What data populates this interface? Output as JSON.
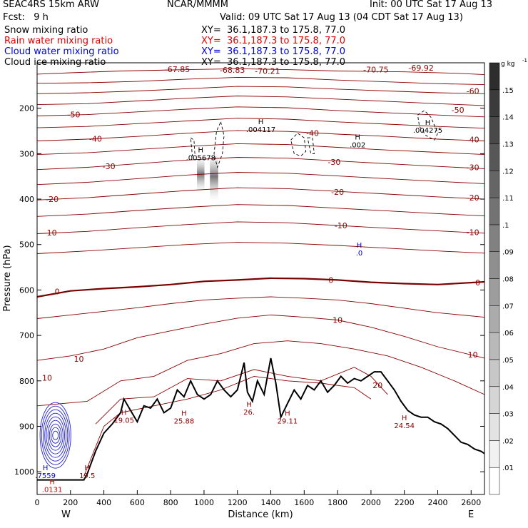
{
  "header": {
    "model": "SEAC4RS 15km ARW",
    "center": "NCAR/MMMM",
    "init": "Init: 00 UTC Sat 17 Aug 13",
    "fcst": "Fcst:   9 h",
    "valid": "Valid: 09 UTC Sat 17 Aug 13 (04 CDT Sat 17 Aug 13)",
    "fields": [
      {
        "name": "Snow mixing ratio",
        "xy": "XY=  36.1,187.3 to 175.8, 77.0",
        "color": "#000000"
      },
      {
        "name": "Rain water mixing ratio",
        "xy": "XY=  36.1,187.3 to 175.8, 77.0",
        "color": "#e00000"
      },
      {
        "name": "Cloud water mixing ratio",
        "xy": "XY=  36.1,187.3 to 175.8, 77.0",
        "color": "#0000e0"
      },
      {
        "name": "Cloud ice mixing ratio",
        "xy": "XY=  36.1,187.3 to 175.8, 77.0",
        "color": "#000000"
      }
    ]
  },
  "chart_data": {
    "type": "cross-section",
    "xlabel": "Distance (km)",
    "ylabel": "Pressure (hPa)",
    "xlim": [
      0,
      2680
    ],
    "ylim": [
      1050,
      100
    ],
    "x_ticks": [
      0,
      200,
      400,
      600,
      800,
      1000,
      1200,
      1400,
      1600,
      1800,
      2000,
      2200,
      2400,
      2600
    ],
    "y_ticks": [
      200,
      300,
      400,
      500,
      600,
      700,
      800,
      900,
      1000
    ],
    "end_labels": {
      "left": "W",
      "right": "E"
    },
    "colorbar": {
      "unit": "g kg",
      "unit_sup": "-1",
      "ticks": [
        ".01",
        ".02",
        ".03",
        ".04",
        ".05",
        ".06",
        ".07",
        ".08",
        ".09",
        ".1",
        ".11",
        ".12",
        ".13",
        ".14",
        ".15"
      ],
      "values": [
        0.01,
        0.02,
        0.03,
        0.04,
        0.05,
        0.06,
        0.07,
        0.08,
        0.09,
        0.1,
        0.11,
        0.12,
        0.13,
        0.14,
        0.15
      ]
    },
    "temperature_contours": {
      "color": "#8b0000",
      "zero_color": "#7a0000",
      "levels": [
        {
          "t": -70,
          "x": [
            0,
            200,
            500,
            900,
            1200,
            1500,
            1800,
            2200,
            2500,
            2680
          ],
          "p": [
            125,
            122,
            118,
            115,
            113,
            115,
            118,
            120,
            123,
            126
          ]
        },
        {
          "t": -65,
          "x": [
            0,
            300,
            600,
            900,
            1200,
            1500,
            1800,
            2100,
            2400,
            2680
          ],
          "p": [
            145,
            144,
            141,
            136,
            132,
            133,
            138,
            142,
            146,
            148
          ]
        },
        {
          "t": -60,
          "x": [
            0,
            300,
            600,
            900,
            1200,
            1500,
            1800,
            2100,
            2400,
            2680
          ],
          "p": [
            168,
            166,
            162,
            157,
            152,
            153,
            158,
            162,
            166,
            168
          ]
        },
        {
          "t": -55,
          "x": [
            0,
            300,
            600,
            900,
            1200,
            1500,
            1800,
            2100,
            2400,
            2680
          ],
          "p": [
            192,
            190,
            184,
            178,
            173,
            175,
            180,
            185,
            190,
            194
          ]
        },
        {
          "t": -50,
          "x": [
            0,
            300,
            600,
            900,
            1200,
            1500,
            1800,
            2100,
            2400,
            2680
          ],
          "p": [
            217,
            214,
            208,
            202,
            197,
            199,
            205,
            210,
            215,
            219
          ]
        },
        {
          "t": -45,
          "x": [
            0,
            300,
            600,
            900,
            1200,
            1500,
            1800,
            2100,
            2400,
            2680
          ],
          "p": [
            243,
            240,
            234,
            228,
            222,
            224,
            230,
            235,
            240,
            244
          ]
        },
        {
          "t": -40,
          "x": [
            0,
            300,
            600,
            900,
            1200,
            1500,
            1800,
            2100,
            2400,
            2680
          ],
          "p": [
            272,
            268,
            262,
            255,
            249,
            251,
            257,
            262,
            268,
            272
          ]
        },
        {
          "t": -35,
          "x": [
            0,
            300,
            600,
            900,
            1200,
            1500,
            1800,
            2100,
            2400,
            2680
          ],
          "p": [
            302,
            298,
            291,
            284,
            278,
            280,
            286,
            292,
            297,
            302
          ]
        },
        {
          "t": -30,
          "x": [
            0,
            300,
            600,
            900,
            1200,
            1500,
            1800,
            2100,
            2400,
            2680
          ],
          "p": [
            335,
            330,
            322,
            314,
            308,
            310,
            316,
            322,
            328,
            333
          ]
        },
        {
          "t": -25,
          "x": [
            0,
            300,
            600,
            900,
            1200,
            1500,
            1800,
            2100,
            2400,
            2680
          ],
          "p": [
            368,
            363,
            355,
            347,
            341,
            343,
            349,
            355,
            361,
            366
          ]
        },
        {
          "t": -20,
          "x": [
            0,
            300,
            600,
            900,
            1200,
            1500,
            1800,
            2100,
            2400,
            2680
          ],
          "p": [
            402,
            397,
            389,
            381,
            375,
            377,
            383,
            389,
            395,
            400
          ]
        },
        {
          "t": -15,
          "x": [
            0,
            300,
            600,
            900,
            1200,
            1500,
            1800,
            2100,
            2400,
            2680
          ],
          "p": [
            438,
            433,
            425,
            418,
            412,
            414,
            420,
            426,
            432,
            437
          ]
        },
        {
          "t": -10,
          "x": [
            0,
            300,
            600,
            900,
            1200,
            1500,
            1800,
            2100,
            2400,
            2680
          ],
          "p": [
            476,
            471,
            463,
            456,
            450,
            452,
            458,
            464,
            470,
            475
          ]
        },
        {
          "t": -5,
          "x": [
            0,
            300,
            600,
            900,
            1200,
            1500,
            1800,
            2100,
            2400,
            2680
          ],
          "p": [
            520,
            514,
            507,
            500,
            495,
            497,
            502,
            508,
            514,
            519
          ]
        },
        {
          "t": 0,
          "x": [
            0,
            200,
            400,
            600,
            800,
            1000,
            1200,
            1400,
            1600,
            1800,
            2000,
            2200,
            2400,
            2680
          ],
          "p": [
            615,
            602,
            597,
            593,
            588,
            581,
            578,
            574,
            575,
            578,
            583,
            586,
            588,
            582
          ]
        },
        {
          "t": 5,
          "x": [
            0,
            200,
            400,
            600,
            800,
            1000,
            1200,
            1400,
            1600,
            1800,
            2000,
            2200,
            2400,
            2680
          ],
          "p": [
            663,
            655,
            647,
            639,
            630,
            622,
            618,
            615,
            618,
            622,
            630,
            640,
            650,
            660
          ]
        },
        {
          "t": 10,
          "x": [
            0,
            200,
            400,
            600,
            800,
            1000,
            1200,
            1400,
            1600,
            1800,
            2000,
            2200,
            2400,
            2680
          ],
          "p": [
            755,
            745,
            730,
            705,
            690,
            675,
            662,
            655,
            660,
            666,
            682,
            702,
            725,
            750
          ]
        },
        {
          "t": 15,
          "x": [
            0,
            300,
            500,
            700,
            900,
            1100,
            1300,
            1500,
            1700,
            1900,
            2100,
            2300,
            2500,
            2680
          ],
          "p": [
            855,
            845,
            800,
            790,
            755,
            740,
            718,
            712,
            718,
            730,
            745,
            770,
            800,
            830
          ]
        },
        {
          "t": 20,
          "x": [
            350,
            500,
            700,
            900,
            1100,
            1300,
            1500,
            1700,
            1900,
            2000,
            2100
          ],
          "p": [
            895,
            840,
            835,
            795,
            800,
            775,
            790,
            800,
            770,
            790,
            830
          ]
        },
        {
          "t": 25,
          "x": [
            280,
            400,
            500,
            700,
            900,
            1100,
            1300,
            1500,
            1700,
            1900,
            2000
          ],
          "p": [
            1010,
            900,
            870,
            855,
            840,
            820,
            790,
            800,
            805,
            815,
            840
          ]
        }
      ],
      "labels": [
        {
          "text": "-70.21",
          "x": 1380,
          "p": 118
        },
        {
          "text": "-68.83",
          "x": 1170,
          "p": 116
        },
        {
          "text": "-67.85",
          "x": 840,
          "p": 114
        },
        {
          "text": "-70.75",
          "x": 2030,
          "p": 115
        },
        {
          "text": "-69.92",
          "x": 2300,
          "p": 111
        },
        {
          "text": "-60",
          "x": 2610,
          "p": 162
        },
        {
          "text": "-50",
          "x": 220,
          "p": 214
        },
        {
          "text": "-50",
          "x": 2520,
          "p": 204
        },
        {
          "text": "-40",
          "x": 350,
          "p": 267
        },
        {
          "text": "-40",
          "x": 1650,
          "p": 255
        },
        {
          "text": "-40",
          "x": 2610,
          "p": 269
        },
        {
          "text": "-30",
          "x": 430,
          "p": 328
        },
        {
          "text": "-30",
          "x": 1780,
          "p": 318
        },
        {
          "text": "-30",
          "x": 2610,
          "p": 330
        },
        {
          "text": "-20",
          "x": 90,
          "p": 400
        },
        {
          "text": "-20",
          "x": 1800,
          "p": 384
        },
        {
          "text": "-20",
          "x": 2610,
          "p": 397
        },
        {
          "text": "-10",
          "x": 80,
          "p": 474
        },
        {
          "text": "-10",
          "x": 1820,
          "p": 458
        },
        {
          "text": "-10",
          "x": 2610,
          "p": 473
        },
        {
          "text": "0",
          "x": 120,
          "p": 603
        },
        {
          "text": "0",
          "x": 1760,
          "p": 578
        },
        {
          "text": "0",
          "x": 2640,
          "p": 584
        },
        {
          "text": "10",
          "x": 60,
          "p": 793
        },
        {
          "text": "10",
          "x": 1800,
          "p": 666
        },
        {
          "text": "10",
          "x": 2610,
          "p": 742
        },
        {
          "text": "10",
          "x": 250,
          "p": 752
        },
        {
          "text": "20",
          "x": 2040,
          "p": 810
        }
      ]
    },
    "snow_shading": [
      {
        "x": 980,
        "p_top": 300,
        "p_bottom": 390,
        "max": 0.055
      },
      {
        "x": 1060,
        "p_top": 290,
        "p_bottom": 410,
        "max": 0.07
      }
    ],
    "cloud_ice_dashed": [
      {
        "x": [
          1100,
          1120,
          1110,
          1080,
          1060,
          1075,
          1100
        ],
        "p": [
          230,
          260,
          300,
          330,
          300,
          250,
          230
        ]
      },
      {
        "x": [
          920,
          940,
          945,
          930,
          920
        ],
        "p": [
          265,
          270,
          300,
          305,
          265
        ]
      },
      {
        "x": [
          1520,
          1560,
          1600,
          1610,
          1580,
          1540,
          1520
        ],
        "p": [
          270,
          255,
          265,
          295,
          305,
          300,
          270
        ]
      },
      {
        "x": [
          1620,
          1650,
          1660,
          1640,
          1620
        ],
        "p": [
          265,
          265,
          300,
          300,
          265
        ]
      },
      {
        "x": [
          2280,
          2320,
          2360,
          2400,
          2380,
          2330,
          2290,
          2280
        ],
        "p": [
          215,
          205,
          220,
          255,
          270,
          260,
          240,
          215
        ]
      }
    ],
    "terrain": {
      "x": [
        0,
        280,
        300,
        350,
        400,
        450,
        500,
        520,
        560,
        600,
        640,
        680,
        720,
        760,
        800,
        840,
        880,
        920,
        960,
        1000,
        1040,
        1080,
        1120,
        1160,
        1200,
        1240,
        1260,
        1290,
        1320,
        1360,
        1400,
        1430,
        1460,
        1500,
        1540,
        1580,
        1620,
        1660,
        1700,
        1740,
        1780,
        1820,
        1860,
        1900,
        1940,
        1980,
        2020,
        2060,
        2100,
        2140,
        2180,
        2220,
        2260,
        2300,
        2340,
        2380,
        2420,
        2460,
        2500,
        2540,
        2580,
        2620,
        2660,
        2680
      ],
      "p": [
        1018,
        1018,
        1005,
        955,
        915,
        895,
        870,
        840,
        865,
        890,
        855,
        860,
        840,
        870,
        860,
        820,
        835,
        800,
        830,
        840,
        830,
        800,
        820,
        835,
        820,
        760,
        825,
        845,
        800,
        830,
        750,
        805,
        880,
        850,
        820,
        840,
        810,
        820,
        800,
        825,
        810,
        790,
        805,
        795,
        800,
        790,
        780,
        780,
        800,
        820,
        845,
        865,
        875,
        880,
        880,
        890,
        895,
        905,
        920,
        935,
        940,
        950,
        955,
        960
      ]
    },
    "cloud_water_blue": {
      "x_center": 110,
      "p_center": 920,
      "rings": 9
    },
    "extrema": [
      {
        "type": "H",
        "value": ".005678",
        "x": 980,
        "p": 300,
        "color": "#000000"
      },
      {
        "type": "H",
        "value": ".004117",
        "x": 1340,
        "p": 238,
        "color": "#000000"
      },
      {
        "type": "H",
        "value": ".002",
        "x": 1920,
        "p": 272,
        "color": "#000000"
      },
      {
        "type": "H",
        "value": ".004275",
        "x": 2340,
        "p": 240,
        "color": "#000000"
      },
      {
        "type": "H",
        "value": ".0",
        "x": 1930,
        "p": 510,
        "color": "#0000e0"
      },
      {
        "type": "H",
        "value": "19.05",
        "x": 520,
        "p": 878,
        "color": "#8b0000"
      },
      {
        "type": "H",
        "value": "25.88",
        "x": 880,
        "p": 880,
        "color": "#8b0000"
      },
      {
        "type": "H",
        "value": "26.",
        "x": 1270,
        "p": 860,
        "color": "#8b0000"
      },
      {
        "type": "H",
        "value": "29.11",
        "x": 1500,
        "p": 880,
        "color": "#8b0000"
      },
      {
        "type": "H",
        "value": "24.54",
        "x": 2200,
        "p": 890,
        "color": "#8b0000"
      },
      {
        "type": "H",
        "value": "19.5",
        "x": 300,
        "p": 1000,
        "color": "#8b0000"
      },
      {
        "type": "H",
        "value": ".7559",
        "x": 50,
        "p": 1000,
        "color": "#0000e0"
      },
      {
        "type": "H",
        "value": ".0131",
        "x": 90,
        "p": 1030,
        "color": "#e00000"
      }
    ]
  }
}
